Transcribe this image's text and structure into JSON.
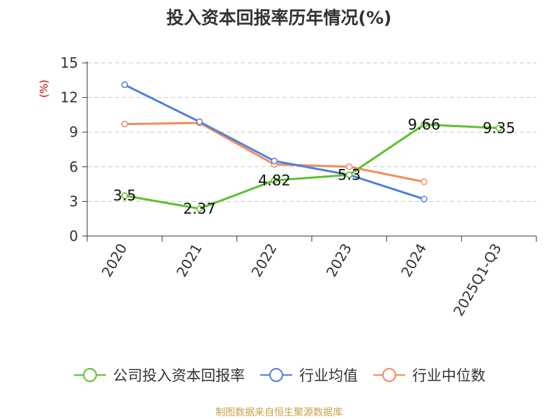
{
  "chart_data": {
    "type": "line",
    "title": "投入资本回报率历年情况(%)",
    "ylabel": "(%)",
    "categories": [
      "2020",
      "2021",
      "2022",
      "2023",
      "2024",
      "2025Q1-Q3"
    ],
    "ylim": [
      0,
      15
    ],
    "yticks": [
      "0",
      "3",
      "6",
      "9",
      "12",
      "15"
    ],
    "grid": true,
    "legend_position": "bottom",
    "series": [
      {
        "name": "公司投入资本回报率",
        "color": "#5cc02e",
        "values": [
          3.5,
          2.37,
          4.82,
          5.3,
          9.66,
          9.35
        ],
        "labels": [
          "3.5",
          "2.37",
          "4.82",
          "5.3",
          "9.66",
          "9.35"
        ]
      },
      {
        "name": "行业均值",
        "color": "#4f81d9",
        "values": [
          13.1,
          9.9,
          6.5,
          5.3,
          3.2,
          null
        ]
      },
      {
        "name": "行业中位数",
        "color": "#f28c5a",
        "values": [
          9.7,
          9.8,
          6.2,
          6.0,
          4.7,
          null
        ]
      }
    ]
  },
  "footer": {
    "source": "制图数据来自恒生聚源数据库"
  }
}
